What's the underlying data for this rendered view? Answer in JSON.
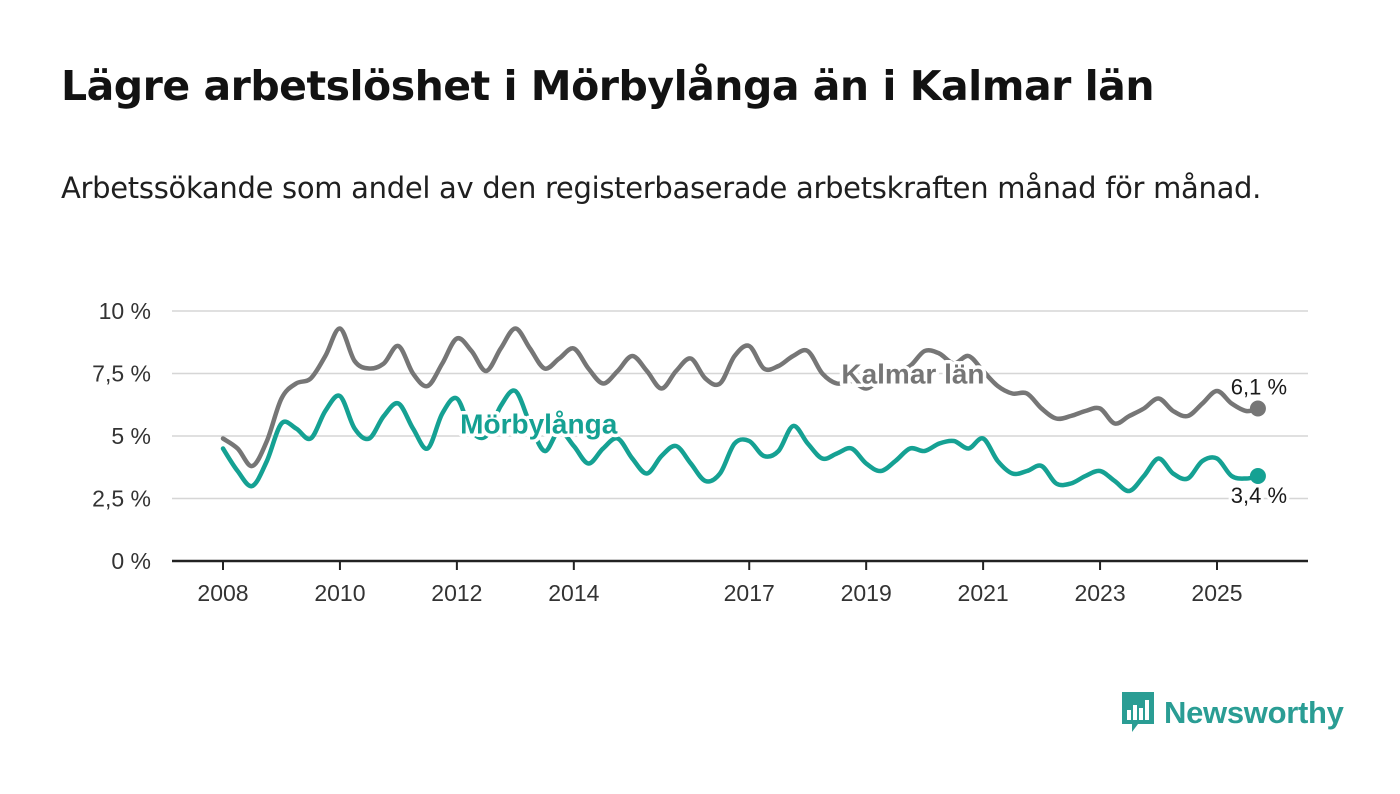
{
  "title": "Lägre arbetslöshet i Mörbylånga än i Kalmar län",
  "subtitle": "Arbetssökande som andel av den registerbaserade arbetskraften månad för månad.",
  "brand": {
    "name": "Newsworthy",
    "color": "#2a9d94"
  },
  "chart_data": {
    "type": "line",
    "title": "",
    "xlabel": "",
    "ylabel": "",
    "ylim": [
      0,
      10
    ],
    "xlim": [
      2008,
      2025.9
    ],
    "y_ticks": [
      0,
      2.5,
      5,
      7.5,
      10
    ],
    "y_tick_labels": [
      "0 %",
      "2,5 %",
      "5 %",
      "7,5 %",
      "10 %"
    ],
    "x_ticks": [
      2008,
      2010,
      2012,
      2014,
      2017,
      2019,
      2021,
      2023,
      2025
    ],
    "x_tick_labels": [
      "2008",
      "2010",
      "2012",
      "2014",
      "2017",
      "2019",
      "2021",
      "2023",
      "2025"
    ],
    "grid": true,
    "series": [
      {
        "name": "Kalmar län",
        "color": "#767676",
        "end_label": "6,1 %",
        "x": [
          2008,
          2008.25,
          2008.5,
          2008.75,
          2009,
          2009.25,
          2009.5,
          2009.75,
          2010,
          2010.25,
          2010.5,
          2010.75,
          2011,
          2011.25,
          2011.5,
          2011.75,
          2012,
          2012.25,
          2012.5,
          2012.75,
          2013,
          2013.25,
          2013.5,
          2013.75,
          2014,
          2014.25,
          2014.5,
          2014.75,
          2015,
          2015.25,
          2015.5,
          2015.75,
          2016,
          2016.25,
          2016.5,
          2016.75,
          2017,
          2017.25,
          2017.5,
          2017.75,
          2018,
          2018.25,
          2018.5,
          2018.75,
          2019,
          2019.25,
          2019.5,
          2019.75,
          2020,
          2020.25,
          2020.5,
          2020.75,
          2021,
          2021.25,
          2021.5,
          2021.75,
          2022,
          2022.25,
          2022.5,
          2022.75,
          2023,
          2023.25,
          2023.5,
          2023.75,
          2024,
          2024.25,
          2024.5,
          2024.75,
          2025,
          2025.25,
          2025.5,
          2025.7
        ],
        "values": [
          4.9,
          4.5,
          3.8,
          4.8,
          6.5,
          7.1,
          7.3,
          8.2,
          9.3,
          8.0,
          7.7,
          7.9,
          8.6,
          7.5,
          7.0,
          7.9,
          8.9,
          8.4,
          7.6,
          8.5,
          9.3,
          8.5,
          7.7,
          8.1,
          8.5,
          7.7,
          7.1,
          7.6,
          8.2,
          7.6,
          6.9,
          7.6,
          8.1,
          7.3,
          7.1,
          8.2,
          8.6,
          7.7,
          7.8,
          8.2,
          8.4,
          7.5,
          7.1,
          7.2,
          6.9,
          7.3,
          7.6,
          7.8,
          8.4,
          8.3,
          7.9,
          8.2,
          7.6,
          7.0,
          6.7,
          6.7,
          6.1,
          5.7,
          5.8,
          6.0,
          6.1,
          5.5,
          5.8,
          6.1,
          6.5,
          6.0,
          5.8,
          6.3,
          6.8,
          6.3,
          6.0,
          6.1
        ]
      },
      {
        "name": "Mörbylånga",
        "color": "#15a193",
        "end_label": "3,4 %",
        "x": [
          2008,
          2008.25,
          2008.5,
          2008.75,
          2009,
          2009.25,
          2009.5,
          2009.75,
          2010,
          2010.25,
          2010.5,
          2010.75,
          2011,
          2011.25,
          2011.5,
          2011.75,
          2012,
          2012.25,
          2012.5,
          2012.75,
          2013,
          2013.25,
          2013.5,
          2013.75,
          2014,
          2014.25,
          2014.5,
          2014.75,
          2015,
          2015.25,
          2015.5,
          2015.75,
          2016,
          2016.25,
          2016.5,
          2016.75,
          2017,
          2017.25,
          2017.5,
          2017.75,
          2018,
          2018.25,
          2018.5,
          2018.75,
          2019,
          2019.25,
          2019.5,
          2019.75,
          2020,
          2020.25,
          2020.5,
          2020.75,
          2021,
          2021.25,
          2021.5,
          2021.75,
          2022,
          2022.25,
          2022.5,
          2022.75,
          2023,
          2023.25,
          2023.5,
          2023.75,
          2024,
          2024.25,
          2024.5,
          2024.75,
          2025,
          2025.25,
          2025.5,
          2025.7
        ],
        "values": [
          4.5,
          3.6,
          3.0,
          4.0,
          5.5,
          5.3,
          4.9,
          6.0,
          6.6,
          5.3,
          4.9,
          5.8,
          6.3,
          5.3,
          4.5,
          5.9,
          6.5,
          5.2,
          5.0,
          6.2,
          6.8,
          5.5,
          4.4,
          5.2,
          4.6,
          3.9,
          4.5,
          4.9,
          4.1,
          3.5,
          4.2,
          4.6,
          3.9,
          3.2,
          3.5,
          4.7,
          4.8,
          4.2,
          4.4,
          5.4,
          4.7,
          4.1,
          4.3,
          4.5,
          3.9,
          3.6,
          4.0,
          4.5,
          4.4,
          4.7,
          4.8,
          4.5,
          4.9,
          4.0,
          3.5,
          3.6,
          3.8,
          3.1,
          3.1,
          3.4,
          3.6,
          3.2,
          2.8,
          3.4,
          4.1,
          3.5,
          3.3,
          4.0,
          4.1,
          3.4,
          3.3,
          3.4
        ]
      }
    ],
    "annotations": [
      {
        "text": "Kalmar län",
        "series": "Kalmar län",
        "x": 2019.8,
        "y": 7.5
      },
      {
        "text": "Mörbylånga",
        "series": "Mörbylånga",
        "x": 2013.4,
        "y": 5.5
      }
    ]
  }
}
